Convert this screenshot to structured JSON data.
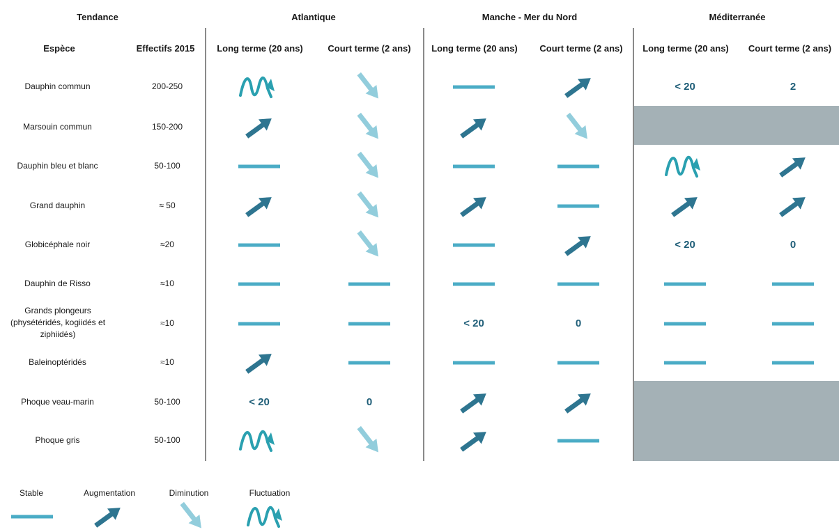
{
  "header": {
    "tendance": "Tendance",
    "regions": [
      "Atlantique",
      "Manche - Mer du Nord",
      "Méditerranée"
    ],
    "espece": "Espèce",
    "effectifs": "Effectifs 2015",
    "long_terme": "Long terme (20 ans)",
    "court_terme": "Court terme (2 ans)"
  },
  "colors": {
    "stable": "#4bacc6",
    "augmentation": "#2e7590",
    "diminution": "#92cddc",
    "fluctuation": "#2aa0b0",
    "numbers": "#1f5e78",
    "not_applicable": "#a4b1b6"
  },
  "rows": [
    {
      "species": "Dauphin commun",
      "effectifs": "200-250",
      "atl": [
        "fluctuation",
        "diminution"
      ],
      "man": [
        "stable",
        "augmentation"
      ],
      "med": [
        "< 20",
        "2"
      ]
    },
    {
      "species": "Marsouin commun",
      "effectifs": "150-200",
      "atl": [
        "augmentation",
        "diminution"
      ],
      "man": [
        "augmentation",
        "diminution"
      ],
      "med": [
        "na",
        "na"
      ]
    },
    {
      "species": "Dauphin bleu et blanc",
      "effectifs": "50-100",
      "atl": [
        "stable",
        "diminution"
      ],
      "man": [
        "stable",
        "stable"
      ],
      "med": [
        "fluctuation",
        "augmentation"
      ]
    },
    {
      "species": "Grand dauphin",
      "effectifs": "≈ 50",
      "atl": [
        "augmentation",
        "diminution"
      ],
      "man": [
        "augmentation",
        "stable"
      ],
      "med": [
        "augmentation",
        "augmentation"
      ]
    },
    {
      "species": "Globicéphale noir",
      "effectifs": "≈20",
      "atl": [
        "stable",
        "diminution"
      ],
      "man": [
        "stable",
        "augmentation"
      ],
      "med": [
        "< 20",
        "0"
      ]
    },
    {
      "species": "Dauphin de Risso",
      "effectifs": "≈10",
      "atl": [
        "stable",
        "stable"
      ],
      "man": [
        "stable",
        "stable"
      ],
      "med": [
        "stable",
        "stable"
      ]
    },
    {
      "species": "Grands plongeurs (physétéridés, kogiidés et ziphiidés)",
      "effectifs": "≈10",
      "atl": [
        "stable",
        "stable"
      ],
      "man": [
        "< 20",
        "0"
      ],
      "med": [
        "stable",
        "stable"
      ]
    },
    {
      "species": "Baleinoptéridés",
      "effectifs": "≈10",
      "atl": [
        "augmentation",
        "stable"
      ],
      "man": [
        "stable",
        "stable"
      ],
      "med": [
        "stable",
        "stable"
      ]
    },
    {
      "species": "Phoque veau-marin",
      "effectifs": "50-100",
      "atl": [
        "< 20",
        "0"
      ],
      "man": [
        "augmentation",
        "augmentation"
      ],
      "med": [
        "na",
        "na"
      ]
    },
    {
      "species": "Phoque gris",
      "effectifs": "50-100",
      "atl": [
        "fluctuation",
        "diminution"
      ],
      "man": [
        "augmentation",
        "stable"
      ],
      "med": [
        "na",
        "na"
      ]
    }
  ],
  "legend": [
    {
      "label": "Stable",
      "type": "stable"
    },
    {
      "label": "Augmentation",
      "type": "augmentation"
    },
    {
      "label": "Diminution",
      "type": "diminution"
    },
    {
      "label": "Fluctuation",
      "type": "fluctuation"
    }
  ]
}
